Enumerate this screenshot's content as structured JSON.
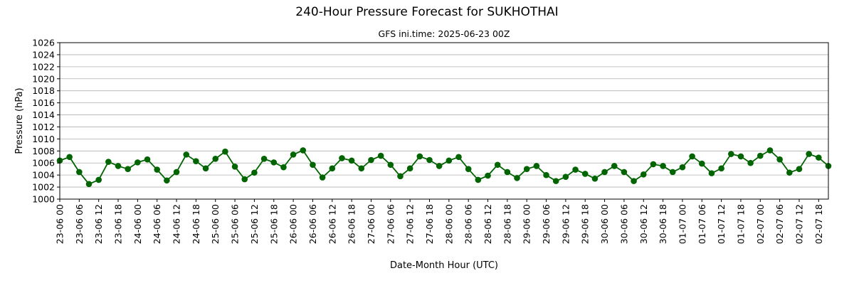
{
  "chart_data": {
    "type": "line",
    "title": "240-Hour Pressure Forecast for SUKHOTHAI",
    "subtitle": "GFS ini.time: 2025-06-23 00Z",
    "xlabel": "Date-Month Hour (UTC)",
    "ylabel": "Pressure (hPa)",
    "ylim": [
      1000,
      1026
    ],
    "yticks": [
      1000,
      1002,
      1004,
      1006,
      1008,
      1010,
      1012,
      1014,
      1016,
      1018,
      1020,
      1022,
      1024,
      1026
    ],
    "grid": "horizontal",
    "color": "#006400",
    "xtick_labels": [
      "23-06 00",
      "23-06 06",
      "23-06 12",
      "23-06 18",
      "24-06 00",
      "24-06 06",
      "24-06 12",
      "24-06 18",
      "25-06 00",
      "25-06 06",
      "25-06 12",
      "25-06 18",
      "26-06 00",
      "26-06 06",
      "26-06 12",
      "26-06 18",
      "27-06 00",
      "27-06 06",
      "27-06 12",
      "27-06 18",
      "28-06 00",
      "28-06 06",
      "28-06 12",
      "28-06 18",
      "29-06 00",
      "29-06 06",
      "29-06 12",
      "29-06 18",
      "30-06 00",
      "30-06 06",
      "30-06 12",
      "30-06 18",
      "01-07 00",
      "01-07 06",
      "01-07 12",
      "01-07 18",
      "02-07 00",
      "02-07 06",
      "02-07 12",
      "02-07 18"
    ],
    "series": [
      {
        "values": [
          1006.4,
          1007.0,
          1004.5,
          1002.5,
          1003.2,
          1006.2,
          1005.5,
          1005.0,
          1006.1,
          1006.6,
          1004.9,
          1003.1,
          1004.5,
          1007.4,
          1006.3,
          1005.1,
          1006.7,
          1007.9,
          1005.4,
          1003.3,
          1004.4,
          1006.7,
          1006.1,
          1005.3,
          1007.4,
          1008.1,
          1005.7,
          1003.6,
          1005.1,
          1006.8,
          1006.4,
          1005.1,
          1006.5,
          1007.2,
          1005.7,
          1003.8,
          1005.1,
          1007.1,
          1006.5,
          1005.5,
          1006.4,
          1007.0,
          1005.0,
          1003.2,
          1003.9,
          1005.7,
          1004.5,
          1003.5,
          1005.0,
          1005.5,
          1004.0,
          1003.0,
          1003.7,
          1004.9,
          1004.2,
          1003.4,
          1004.5,
          1005.5,
          1004.5,
          1003.0,
          1004.1,
          1005.8,
          1005.5,
          1004.5,
          1005.3,
          1007.1,
          1005.9,
          1004.3,
          1005.1,
          1007.5,
          1007.1,
          1006.0,
          1007.2,
          1008.1,
          1006.6,
          1004.4,
          1005.0,
          1007.5,
          1006.9,
          1005.5
        ]
      }
    ]
  }
}
